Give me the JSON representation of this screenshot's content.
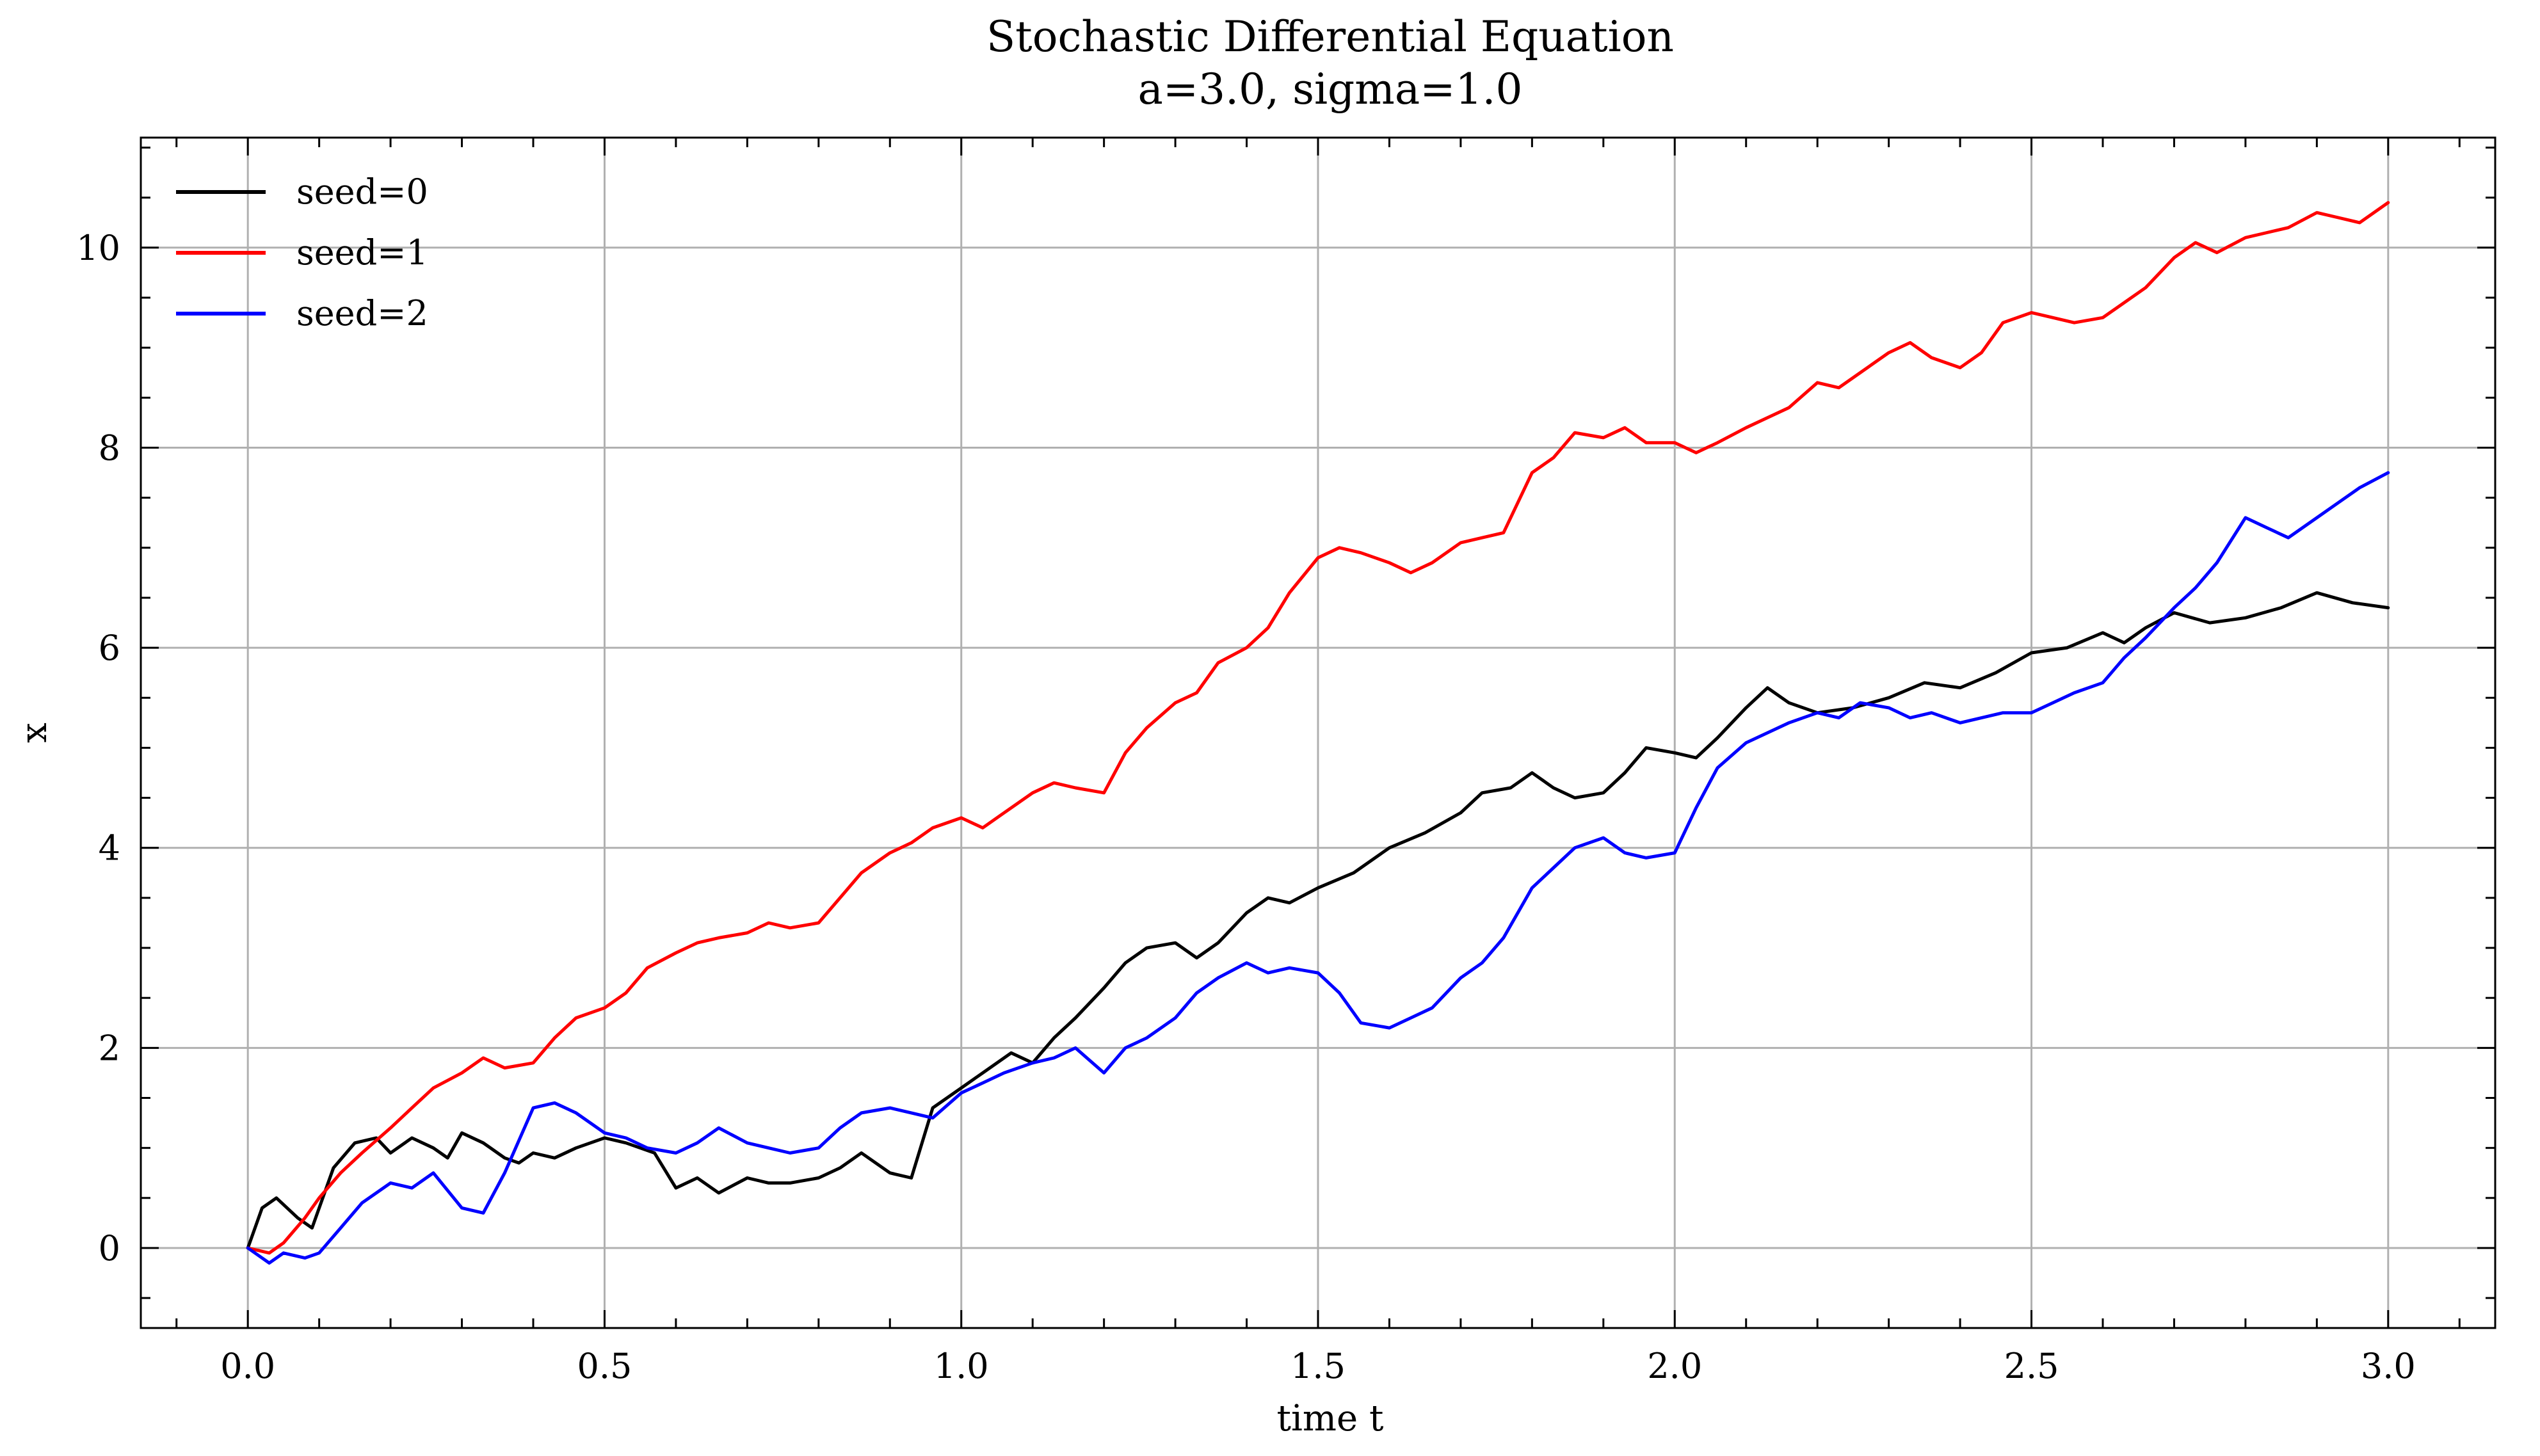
{
  "chart_data": {
    "type": "line",
    "title": "Stochastic Differential Equation",
    "subtitle": "a=3.0, sigma=1.0",
    "xlabel": "time t",
    "ylabel": "x",
    "xlim": [
      -0.15,
      3.15
    ],
    "ylim": [
      -0.8,
      11.1
    ],
    "xticks": [
      0.0,
      0.5,
      1.0,
      1.5,
      2.0,
      2.5,
      3.0
    ],
    "xtick_labels": [
      "0.0",
      "0.5",
      "1.0",
      "1.5",
      "2.0",
      "2.5",
      "3.0"
    ],
    "yticks": [
      0,
      2,
      4,
      6,
      8,
      10
    ],
    "ytick_labels": [
      "0",
      "2",
      "4",
      "6",
      "8",
      "10"
    ],
    "grid": true,
    "legend_position": "top-left",
    "series": [
      {
        "name": "seed=0",
        "color": "#000000",
        "x": [
          0.0,
          0.02,
          0.04,
          0.07,
          0.09,
          0.12,
          0.15,
          0.18,
          0.2,
          0.23,
          0.26,
          0.28,
          0.3,
          0.33,
          0.36,
          0.38,
          0.4,
          0.43,
          0.46,
          0.5,
          0.53,
          0.57,
          0.6,
          0.63,
          0.66,
          0.7,
          0.73,
          0.76,
          0.8,
          0.83,
          0.86,
          0.9,
          0.93,
          0.96,
          1.0,
          1.03,
          1.07,
          1.1,
          1.13,
          1.16,
          1.2,
          1.23,
          1.26,
          1.3,
          1.33,
          1.36,
          1.4,
          1.43,
          1.46,
          1.5,
          1.55,
          1.6,
          1.65,
          1.7,
          1.73,
          1.77,
          1.8,
          1.83,
          1.86,
          1.9,
          1.93,
          1.96,
          2.0,
          2.03,
          2.06,
          2.1,
          2.13,
          2.16,
          2.2,
          2.25,
          2.3,
          2.35,
          2.4,
          2.45,
          2.5,
          2.55,
          2.6,
          2.63,
          2.66,
          2.7,
          2.75,
          2.8,
          2.85,
          2.9,
          2.95,
          3.0
        ],
        "y": [
          0.0,
          0.4,
          0.5,
          0.3,
          0.2,
          0.8,
          1.05,
          1.1,
          0.95,
          1.1,
          1.0,
          0.9,
          1.15,
          1.05,
          0.9,
          0.85,
          0.95,
          0.9,
          1.0,
          1.1,
          1.05,
          0.95,
          0.6,
          0.7,
          0.55,
          0.7,
          0.65,
          0.65,
          0.7,
          0.8,
          0.95,
          0.75,
          0.7,
          1.4,
          1.6,
          1.75,
          1.95,
          1.85,
          2.1,
          2.3,
          2.6,
          2.85,
          3.0,
          3.05,
          2.9,
          3.05,
          3.35,
          3.5,
          3.45,
          3.6,
          3.75,
          4.0,
          4.15,
          4.35,
          4.55,
          4.6,
          4.75,
          4.6,
          4.5,
          4.55,
          4.75,
          5.0,
          4.95,
          4.9,
          5.1,
          5.4,
          5.6,
          5.45,
          5.35,
          5.4,
          5.5,
          5.65,
          5.6,
          5.75,
          5.95,
          6.0,
          6.15,
          6.05,
          6.2,
          6.35,
          6.25,
          6.3,
          6.4,
          6.55,
          6.45,
          6.4
        ]
      },
      {
        "name": "seed=1",
        "color": "#ff0000",
        "x": [
          0.0,
          0.03,
          0.05,
          0.08,
          0.1,
          0.13,
          0.16,
          0.2,
          0.23,
          0.26,
          0.3,
          0.33,
          0.36,
          0.4,
          0.43,
          0.46,
          0.5,
          0.53,
          0.56,
          0.6,
          0.63,
          0.66,
          0.7,
          0.73,
          0.76,
          0.8,
          0.83,
          0.86,
          0.9,
          0.93,
          0.96,
          1.0,
          1.03,
          1.06,
          1.1,
          1.13,
          1.16,
          1.2,
          1.23,
          1.26,
          1.3,
          1.33,
          1.36,
          1.4,
          1.43,
          1.46,
          1.5,
          1.53,
          1.56,
          1.6,
          1.63,
          1.66,
          1.7,
          1.73,
          1.76,
          1.8,
          1.83,
          1.86,
          1.9,
          1.93,
          1.96,
          2.0,
          2.03,
          2.06,
          2.1,
          2.13,
          2.16,
          2.2,
          2.23,
          2.26,
          2.3,
          2.33,
          2.36,
          2.4,
          2.43,
          2.46,
          2.5,
          2.53,
          2.56,
          2.6,
          2.63,
          2.66,
          2.7,
          2.73,
          2.76,
          2.8,
          2.83,
          2.86,
          2.9,
          2.93,
          2.96,
          3.0
        ],
        "y": [
          0.0,
          -0.05,
          0.05,
          0.3,
          0.5,
          0.75,
          0.95,
          1.2,
          1.4,
          1.6,
          1.75,
          1.9,
          1.8,
          1.85,
          2.1,
          2.3,
          2.4,
          2.55,
          2.8,
          2.95,
          3.05,
          3.1,
          3.15,
          3.25,
          3.2,
          3.25,
          3.5,
          3.75,
          3.95,
          4.05,
          4.2,
          4.3,
          4.2,
          4.35,
          4.55,
          4.65,
          4.6,
          4.55,
          4.95,
          5.2,
          5.45,
          5.55,
          5.85,
          6.0,
          6.2,
          6.55,
          6.9,
          7.0,
          6.95,
          6.85,
          6.75,
          6.85,
          7.05,
          7.1,
          7.15,
          7.75,
          7.9,
          8.15,
          8.1,
          8.2,
          8.05,
          8.05,
          7.95,
          8.05,
          8.2,
          8.3,
          8.4,
          8.65,
          8.6,
          8.75,
          8.95,
          9.05,
          8.9,
          8.8,
          8.95,
          9.25,
          9.35,
          9.3,
          9.25,
          9.3,
          9.45,
          9.6,
          9.9,
          10.05,
          9.95,
          10.1,
          10.15,
          10.2,
          10.35,
          10.3,
          10.25,
          10.45
        ]
      },
      {
        "name": "seed=2",
        "color": "#0000ff",
        "x": [
          0.0,
          0.03,
          0.05,
          0.08,
          0.1,
          0.13,
          0.16,
          0.2,
          0.23,
          0.26,
          0.3,
          0.33,
          0.36,
          0.4,
          0.43,
          0.46,
          0.5,
          0.53,
          0.56,
          0.6,
          0.63,
          0.66,
          0.7,
          0.73,
          0.76,
          0.8,
          0.83,
          0.86,
          0.9,
          0.93,
          0.96,
          1.0,
          1.03,
          1.06,
          1.1,
          1.13,
          1.16,
          1.2,
          1.23,
          1.26,
          1.3,
          1.33,
          1.36,
          1.4,
          1.43,
          1.46,
          1.5,
          1.53,
          1.56,
          1.6,
          1.63,
          1.66,
          1.7,
          1.73,
          1.76,
          1.8,
          1.83,
          1.86,
          1.9,
          1.93,
          1.96,
          2.0,
          2.03,
          2.06,
          2.1,
          2.13,
          2.16,
          2.2,
          2.23,
          2.26,
          2.3,
          2.33,
          2.36,
          2.4,
          2.43,
          2.46,
          2.5,
          2.53,
          2.56,
          2.6,
          2.63,
          2.66,
          2.7,
          2.73,
          2.76,
          2.8,
          2.83,
          2.86,
          2.9,
          2.93,
          2.96,
          3.0
        ],
        "y": [
          0.0,
          -0.15,
          -0.05,
          -0.1,
          -0.05,
          0.2,
          0.45,
          0.65,
          0.6,
          0.75,
          0.4,
          0.35,
          0.75,
          1.4,
          1.45,
          1.35,
          1.15,
          1.1,
          1.0,
          0.95,
          1.05,
          1.2,
          1.05,
          1.0,
          0.95,
          1.0,
          1.2,
          1.35,
          1.4,
          1.35,
          1.3,
          1.55,
          1.65,
          1.75,
          1.85,
          1.9,
          2.0,
          1.75,
          2.0,
          2.1,
          2.3,
          2.55,
          2.7,
          2.85,
          2.75,
          2.8,
          2.75,
          2.55,
          2.25,
          2.2,
          2.3,
          2.4,
          2.7,
          2.85,
          3.1,
          3.6,
          3.8,
          4.0,
          4.1,
          3.95,
          3.9,
          3.95,
          4.4,
          4.8,
          5.05,
          5.15,
          5.25,
          5.35,
          5.3,
          5.45,
          5.4,
          5.3,
          5.35,
          5.25,
          5.3,
          5.35,
          5.35,
          5.45,
          5.55,
          5.65,
          5.9,
          6.1,
          6.4,
          6.6,
          6.85,
          7.3,
          7.2,
          7.1,
          7.3,
          7.45,
          7.6,
          7.75
        ]
      }
    ]
  }
}
